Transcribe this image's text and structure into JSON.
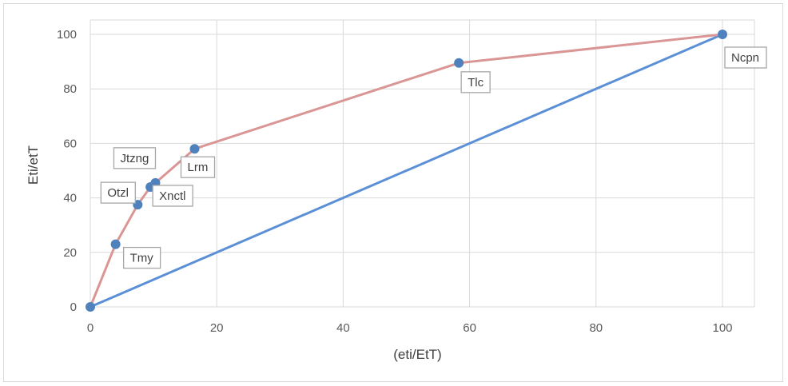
{
  "chart_data": {
    "type": "scatter",
    "title": "",
    "xlabel": "(eti/EtT)",
    "ylabel": "Eti/etT",
    "xlim": [
      0,
      105
    ],
    "ylim": [
      0,
      105
    ],
    "x_ticks": [
      0,
      20,
      40,
      60,
      80,
      100
    ],
    "y_ticks": [
      0,
      20,
      40,
      60,
      80,
      100
    ],
    "grid": true,
    "legend": "none",
    "series": [
      {
        "style": "line-with-markers",
        "line_color": "#d99694",
        "marker_color": "#4f81bd",
        "points": [
          {
            "x": 0,
            "y": 0,
            "label": ""
          },
          {
            "x": 4,
            "y": 23,
            "label": "Tmy"
          },
          {
            "x": 7.5,
            "y": 37.5,
            "label": "Otzl"
          },
          {
            "x": 9.5,
            "y": 44,
            "label": "Xnctl"
          },
          {
            "x": 10.3,
            "y": 45.5,
            "label": "Jtzng"
          },
          {
            "x": 16.5,
            "y": 58,
            "label": "Lrm"
          },
          {
            "x": 58.3,
            "y": 89.5,
            "label": "Tlc"
          },
          {
            "x": 100,
            "y": 100,
            "label": "Ncpn"
          }
        ]
      },
      {
        "style": "line",
        "line_color": "#5b8fd6",
        "points": [
          {
            "x": 0,
            "y": 0
          },
          {
            "x": 100,
            "y": 100
          }
        ]
      }
    ]
  }
}
